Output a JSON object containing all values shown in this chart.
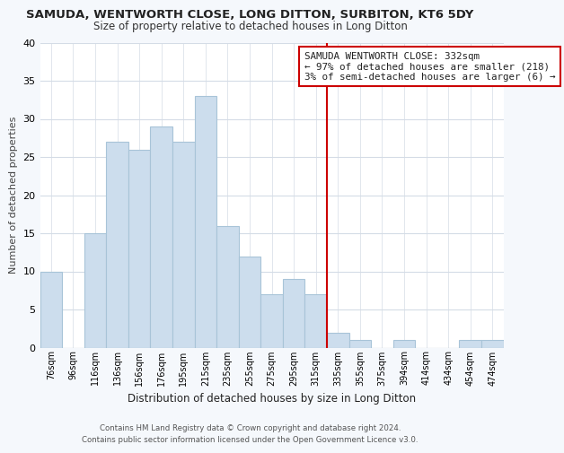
{
  "title": "SAMUDA, WENTWORTH CLOSE, LONG DITTON, SURBITON, KT6 5DY",
  "subtitle": "Size of property relative to detached houses in Long Ditton",
  "xlabel": "Distribution of detached houses by size in Long Ditton",
  "ylabel": "Number of detached properties",
  "bar_labels": [
    "76sqm",
    "96sqm",
    "116sqm",
    "136sqm",
    "156sqm",
    "176sqm",
    "195sqm",
    "215sqm",
    "235sqm",
    "255sqm",
    "275sqm",
    "295sqm",
    "315sqm",
    "335sqm",
    "355sqm",
    "375sqm",
    "394sqm",
    "414sqm",
    "434sqm",
    "454sqm",
    "474sqm"
  ],
  "bar_values": [
    10,
    0,
    15,
    27,
    26,
    29,
    27,
    33,
    16,
    12,
    7,
    9,
    7,
    2,
    1,
    0,
    1,
    0,
    0,
    1,
    1
  ],
  "bar_color": "#ccdded",
  "bar_edge_color": "#a8c4d8",
  "ylim": [
    0,
    40
  ],
  "yticks": [
    0,
    5,
    10,
    15,
    20,
    25,
    30,
    35,
    40
  ],
  "vline_x_index": 13,
  "vline_color": "#cc0000",
  "legend_title": "SAMUDA WENTWORTH CLOSE: 332sqm",
  "legend_line1": "← 97% of detached houses are smaller (218)",
  "legend_line2": "3% of semi-detached houses are larger (6) →",
  "footer_line1": "Contains HM Land Registry data © Crown copyright and database right 2024.",
  "footer_line2": "Contains public sector information licensed under the Open Government Licence v3.0.",
  "background_color": "#f5f8fc",
  "plot_bg_color": "#ffffff",
  "grid_color": "#d4dce6"
}
